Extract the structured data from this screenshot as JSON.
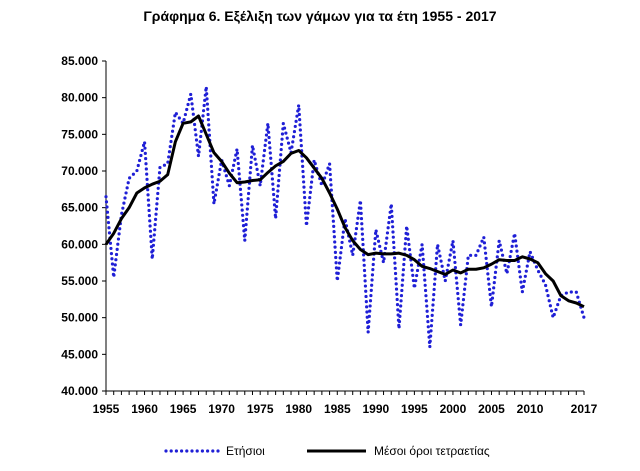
{
  "chart_data": {
    "type": "line",
    "title": "Γράφημα 6. Εξέλιξη των γάμων για τα έτη 1955 - 2017",
    "xlabel": "",
    "ylabel": "",
    "xlim": [
      1955,
      2017
    ],
    "ylim": [
      40000,
      85000
    ],
    "x_ticks": [
      "1955",
      "1960",
      "1965",
      "1970",
      "1975",
      "1980",
      "1985",
      "1990",
      "1995",
      "2000",
      "2005",
      "2010",
      "2017"
    ],
    "y_ticks": [
      "85.000",
      "80.000",
      "75.000",
      "70.000",
      "65.000",
      "60.000",
      "55.000",
      "50.000",
      "45.000",
      "40.000"
    ],
    "legend_position": "bottom",
    "grid": false,
    "x": [
      1955,
      1956,
      1957,
      1958,
      1959,
      1960,
      1961,
      1962,
      1963,
      1964,
      1965,
      1966,
      1967,
      1968,
      1969,
      1970,
      1971,
      1972,
      1973,
      1974,
      1975,
      1976,
      1977,
      1978,
      1979,
      1980,
      1981,
      1982,
      1983,
      1984,
      1985,
      1986,
      1987,
      1988,
      1989,
      1990,
      1991,
      1992,
      1993,
      1994,
      1995,
      1996,
      1997,
      1998,
      1999,
      2000,
      2001,
      2002,
      2003,
      2004,
      2005,
      2006,
      2007,
      2008,
      2009,
      2010,
      2011,
      2012,
      2013,
      2014,
      2015,
      2016,
      2017
    ],
    "series": [
      {
        "name": "Ετήσιοι",
        "color": "#1f1fd6",
        "style": "dotted",
        "values": [
          66500,
          55500,
          64000,
          69000,
          70000,
          74000,
          58000,
          70500,
          71000,
          78000,
          76500,
          80500,
          72000,
          81500,
          65500,
          71500,
          68000,
          73000,
          60500,
          73500,
          68000,
          76500,
          63500,
          76500,
          72500,
          79000,
          62500,
          71500,
          68000,
          71000,
          55000,
          63500,
          58500,
          66000,
          48000,
          62000,
          57500,
          65500,
          48500,
          62500,
          54000,
          60000,
          46000,
          60000,
          55000,
          60500,
          49000,
          58500,
          58500,
          61000,
          51500,
          60500,
          56000,
          61500,
          53500,
          59000,
          56500,
          54500,
          50000,
          53000,
          53500,
          53500,
          50000
        ]
      },
      {
        "name": "Μέσοι όροι τετραετίας",
        "color": "#000000",
        "style": "solid",
        "values": [
          60000,
          61500,
          63500,
          65000,
          67000,
          67700,
          68200,
          68600,
          69500,
          74000,
          76500,
          76700,
          77500,
          75000,
          72500,
          71300,
          69700,
          68400,
          68500,
          68700,
          68800,
          69800,
          70700,
          71300,
          72400,
          72800,
          71800,
          70400,
          69000,
          67000,
          64800,
          62300,
          60500,
          59300,
          58600,
          58800,
          58700,
          58700,
          58800,
          58500,
          57900,
          57000,
          56700,
          56300,
          55900,
          56500,
          56100,
          56600,
          56600,
          56800,
          57300,
          57900,
          57800,
          57800,
          58300,
          58000,
          57500,
          56000,
          55000,
          53000,
          52300,
          52000,
          51500
        ]
      }
    ]
  }
}
